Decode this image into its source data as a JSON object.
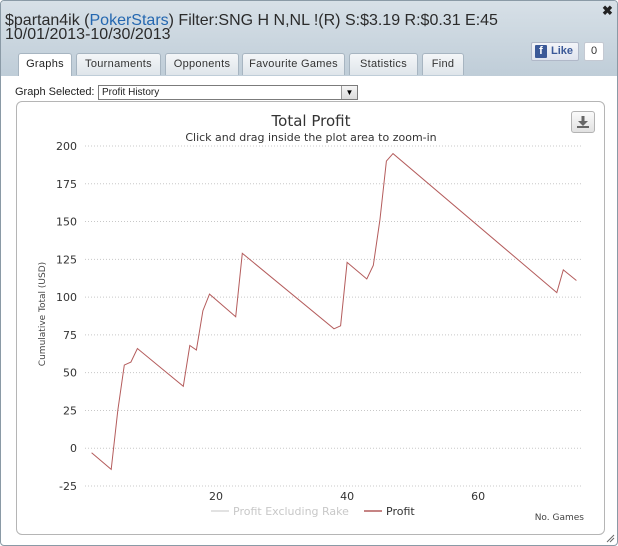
{
  "header": {
    "player": "$partan4ik",
    "site_open": "(",
    "site": "PokerStars",
    "site_close": ")",
    "filter": "Filter:SNG H N,NL !(R) S:$3.19 R:$0.31 E:45",
    "date_range": "10/01/2013-10/30/2013"
  },
  "facebook": {
    "like_label": "Like",
    "like_count": "0"
  },
  "tabs": [
    {
      "label": "Graphs",
      "active": true
    },
    {
      "label": "Tournaments",
      "active": false
    },
    {
      "label": "Opponents",
      "active": false
    },
    {
      "label": "Favourite Games",
      "active": false
    },
    {
      "label": "Statistics",
      "active": false
    },
    {
      "label": "Find",
      "active": false
    }
  ],
  "graph_select": {
    "label": "Graph Selected:",
    "value": "Profit History"
  },
  "icons": {
    "close": "close-icon",
    "download": "download-icon",
    "select_arrow": "chevron-down-icon",
    "resize": "resize-grip-icon",
    "facebook": "facebook-icon"
  },
  "colors": {
    "profit_line": "#b45c5c",
    "profit_excl_rake_line": "#d9d9d9"
  },
  "chart_data": {
    "type": "line",
    "title": "Total Profit",
    "subtitle": "Click and drag inside the plot area to zoom-in",
    "xlabel": "No. Games",
    "ylabel": "Cumulative Total (USD)",
    "xlim": [
      0,
      76
    ],
    "ylim": [
      -25,
      200
    ],
    "xticks": [
      20,
      40,
      60
    ],
    "yticks": [
      -25,
      0,
      25,
      50,
      75,
      100,
      125,
      150,
      175,
      200
    ],
    "grid": "horizontal dotted",
    "legend_position": "bottom-center",
    "series": [
      {
        "name": "Profit Excluding Rake",
        "values": []
      },
      {
        "name": "Profit",
        "x": [
          1,
          4,
          5,
          6,
          6.5,
          7,
          8,
          15,
          16,
          17,
          18,
          19,
          23,
          24,
          38,
          39,
          40,
          43,
          44,
          45,
          46,
          47,
          72,
          73,
          75
        ],
        "values": [
          -3,
          -14,
          25,
          55,
          56,
          57,
          66,
          41,
          68,
          65,
          91,
          102,
          87,
          129,
          79,
          81,
          123,
          112,
          121,
          151,
          190,
          195,
          103,
          118,
          111
        ]
      }
    ]
  }
}
